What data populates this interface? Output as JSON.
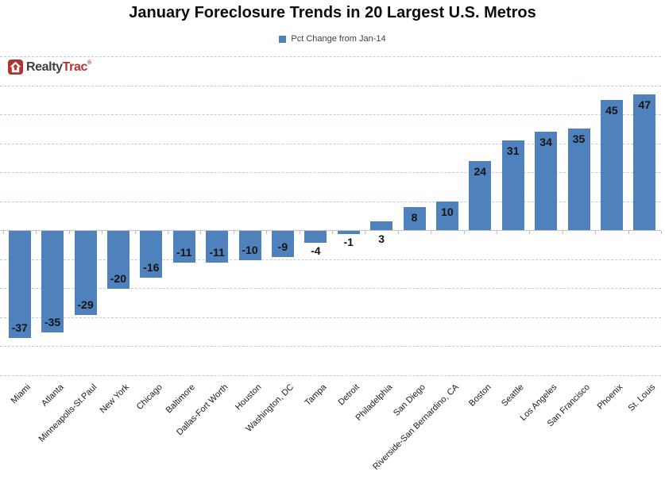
{
  "title": "January Foreclosure Trends in 20 Largest U.S. Metros",
  "legend": {
    "label": "Pct Change from Jan-14",
    "swatch_color": "#4f81bd"
  },
  "logo": {
    "part1": "Realty",
    "part2": "Trac",
    "trademark": "®"
  },
  "chart_data": {
    "type": "bar",
    "title": "January Foreclosure Trends in 20 Largest U.S. Metros",
    "legend_entries": [
      "Pct Change from Jan-14"
    ],
    "legend_position": "top",
    "categories": [
      "Miami",
      "Atlanta",
      "Minneapolis-St.Paul",
      "New York",
      "Chicago",
      "Baltimore",
      "Dallas-Fort Worth",
      "Houston",
      "Washington, DC",
      "Tampa",
      "Detroit",
      "Philadelphia",
      "San Diego",
      "Riverside-San Bernardino, CA",
      "Boston",
      "Seattle",
      "Los Angeles",
      "San Francisco",
      "Phoenix",
      "St. Louis"
    ],
    "values": [
      -37,
      -35,
      -29,
      -20,
      -16,
      -11,
      -11,
      -10,
      -9,
      -4,
      -1,
      3,
      8,
      10,
      24,
      31,
      34,
      35,
      45,
      47
    ],
    "xlabel": "",
    "ylabel": "",
    "ylim": [
      -50,
      60
    ],
    "gridline_step": 10,
    "grid": true,
    "data_labels": true,
    "bar_color": "#4f81bd",
    "gridline_color": "#b9cce6",
    "axis_color": "#c3c3c3"
  }
}
